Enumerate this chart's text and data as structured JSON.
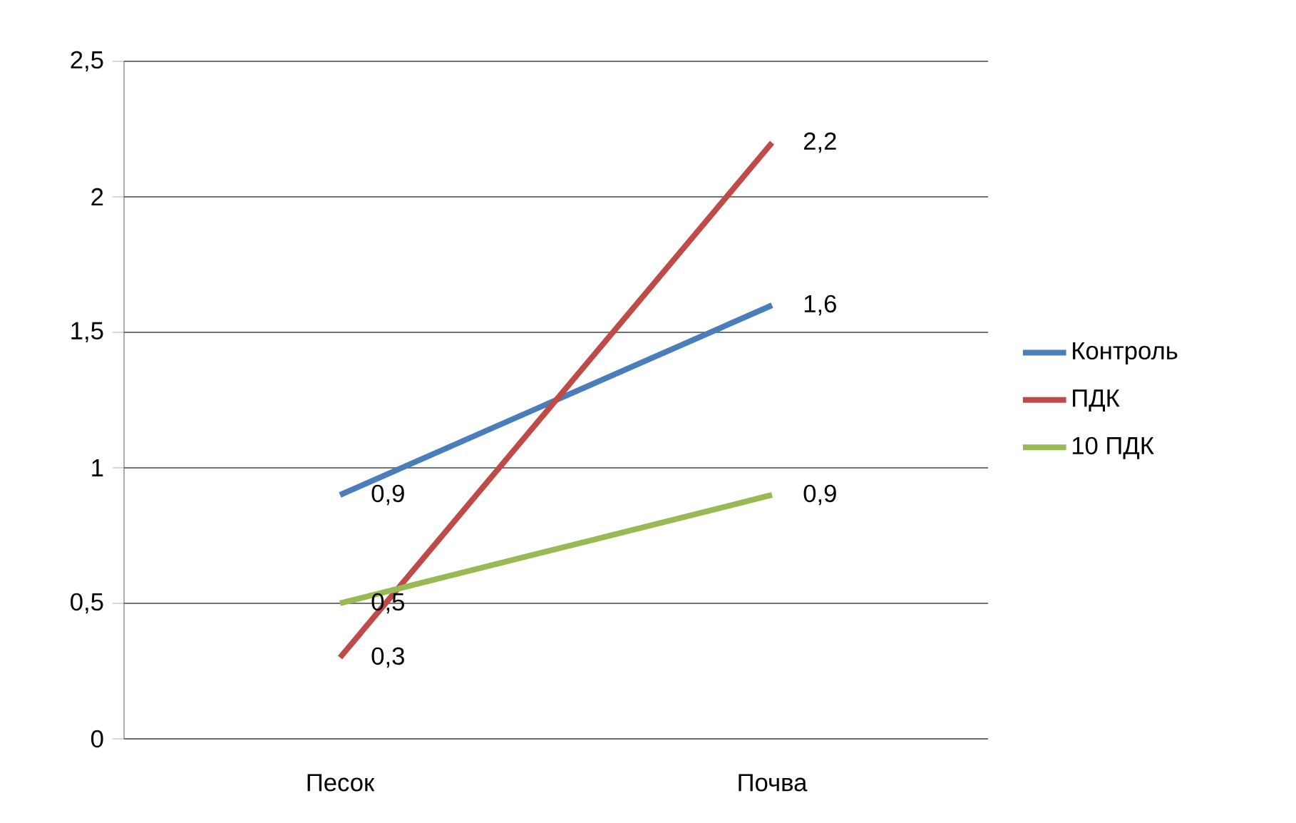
{
  "chart_data": {
    "type": "line",
    "categories": [
      "Песок",
      "Почва"
    ],
    "series": [
      {
        "name": "Контроль",
        "color": "#4a7ebb",
        "values": [
          0.9,
          1.6
        ],
        "value_labels": [
          "0,9",
          "1,6"
        ]
      },
      {
        "name": "ПДК",
        "color": "#be4b48",
        "values": [
          0.3,
          2.2
        ],
        "value_labels": [
          "0,3",
          "2,2"
        ]
      },
      {
        "name": "10 ПДК",
        "color": "#98b954",
        "values": [
          0.5,
          0.9
        ],
        "value_labels": [
          "0,5",
          "0,9"
        ]
      }
    ],
    "ylim": [
      0,
      2.5
    ],
    "yticks": [
      0,
      {
        "value": 0.5,
        "label": "0,5"
      },
      1,
      {
        "value": 1.5,
        "label": "1,5"
      },
      2,
      {
        "value": 2.5,
        "label": "2,5"
      }
    ],
    "grid": "y",
    "legend": "right",
    "marker": "none",
    "line_style": "solid"
  }
}
